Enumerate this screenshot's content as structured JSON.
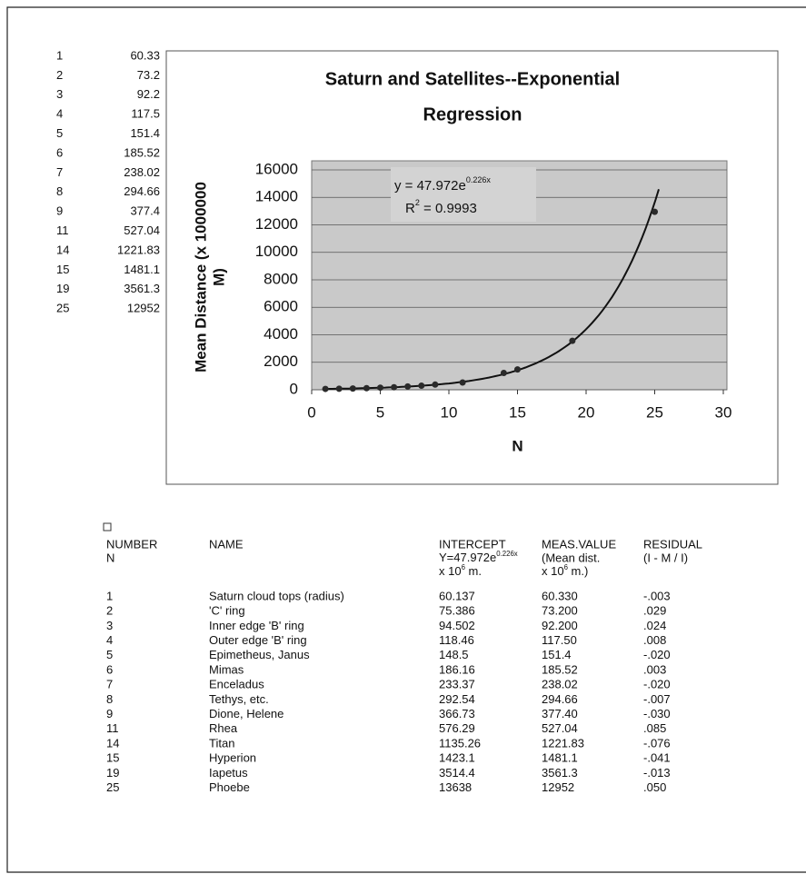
{
  "side_list": [
    {
      "n": "1",
      "value": "60.33"
    },
    {
      "n": "2",
      "value": "73.2"
    },
    {
      "n": "3",
      "value": "92.2"
    },
    {
      "n": "4",
      "value": "117.5"
    },
    {
      "n": "5",
      "value": "151.4"
    },
    {
      "n": "6",
      "value": "185.52"
    },
    {
      "n": "7",
      "value": "238.02"
    },
    {
      "n": "8",
      "value": "294.66"
    },
    {
      "n": "9",
      "value": "377.4"
    },
    {
      "n": "11",
      "value": "527.04"
    },
    {
      "n": "14",
      "value": "1221.83"
    },
    {
      "n": "15",
      "value": "1481.1"
    },
    {
      "n": "19",
      "value": "3561.3"
    },
    {
      "n": "25",
      "value": "12952"
    }
  ],
  "chart_data": {
    "type": "scatter",
    "title": "Saturn and Satellites--Exponential Regression",
    "title_lines": [
      "Saturn and Satellites--Exponential",
      "Regression"
    ],
    "x_label": "N",
    "y_label": "Mean Distance (x 1000000 M)",
    "y_label_lines": [
      "Mean Distance (x 1000000",
      "M)"
    ],
    "x": [
      1,
      2,
      3,
      4,
      5,
      6,
      7,
      8,
      9,
      11,
      14,
      15,
      19,
      25
    ],
    "values": [
      60.33,
      73.2,
      92.2,
      117.5,
      151.4,
      185.52,
      238.02,
      294.66,
      377.4,
      527.04,
      1221.83,
      1481.1,
      3561.3,
      12952
    ],
    "color": "#2a2a2a",
    "xlim": [
      0,
      30
    ],
    "xticks": [
      0,
      5,
      10,
      15,
      20,
      25,
      30
    ],
    "ylim": [
      0,
      16000
    ],
    "yticks": [
      0,
      2000,
      4000,
      6000,
      8000,
      10000,
      12000,
      14000,
      16000
    ],
    "grid": true,
    "trendline": {
      "coefficient": 47.972,
      "rate": 0.226
    },
    "equation": {
      "base": "y = 47.972e",
      "sup": "0.226x"
    },
    "r_squared": {
      "base": "R",
      "sup": "2",
      "rest": " = 0.9993"
    }
  },
  "table": {
    "header": [
      [
        "NUMBER",
        "N"
      ],
      [
        "NAME"
      ],
      [
        "INTERCEPT",
        {
          "base": "Y=47.972e",
          "sup": "0.226x"
        },
        {
          "base": "x 10",
          "sup": "6",
          "rest": " m."
        }
      ],
      [
        "MEAS.VALUE",
        " (Mean dist.",
        {
          "base": "x 10",
          "sup": "6",
          "rest": " m.)"
        }
      ],
      [
        "RESIDUAL",
        "(I - M / I)"
      ]
    ],
    "rows": [
      [
        "1",
        "Saturn cloud tops (radius)",
        "60.137",
        "60.330",
        "-.003"
      ],
      [
        "2",
        "'C' ring",
        "75.386",
        "73.200",
        ".029"
      ],
      [
        "3",
        "Inner edge 'B' ring",
        "94.502",
        "92.200",
        ".024"
      ],
      [
        "4",
        "Outer edge 'B' ring",
        "118.46",
        "117.50",
        ".008"
      ],
      [
        "5",
        "Epimetheus, Janus",
        "148.5",
        "151.4",
        "-.020"
      ],
      [
        "6",
        "Mimas",
        "186.16",
        "185.52",
        ".003"
      ],
      [
        "7",
        "Enceladus",
        "233.37",
        "238.02",
        "-.020"
      ],
      [
        "8",
        "Tethys, etc.",
        "292.54",
        "294.66",
        "-.007"
      ],
      [
        "9",
        "Dione, Helene",
        "366.73",
        "377.40",
        "-.030"
      ],
      [
        "11",
        "Rhea",
        "576.29",
        "527.04",
        ".085"
      ],
      [
        "14",
        "Titan",
        "1135.26",
        "1221.83",
        "-.076"
      ],
      [
        "15",
        "Hyperion",
        "1423.1",
        "1481.1",
        "-.041"
      ],
      [
        "19",
        "Iapetus",
        "3514.4",
        "3561.3",
        "-.013"
      ],
      [
        "25",
        "Phoebe",
        "13638",
        "12952",
        ".050"
      ]
    ]
  }
}
